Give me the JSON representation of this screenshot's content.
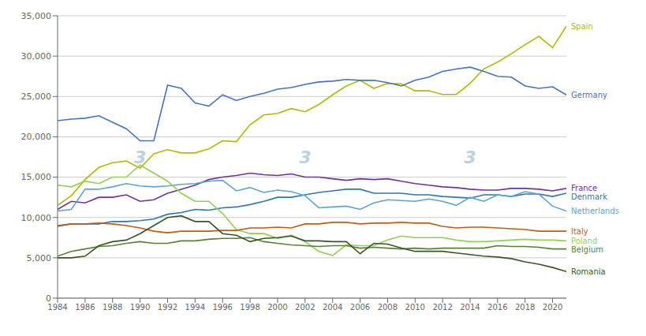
{
  "chart_data": {
    "type": "line",
    "x": [
      1984,
      1985,
      1986,
      1987,
      1988,
      1989,
      1990,
      1991,
      1992,
      1993,
      1994,
      1995,
      1996,
      1997,
      1998,
      1999,
      2000,
      2001,
      2002,
      2003,
      2004,
      2005,
      2006,
      2007,
      2008,
      2009,
      2010,
      2011,
      2012,
      2013,
      2014,
      2015,
      2016,
      2017,
      2018,
      2019,
      2020,
      2021
    ],
    "xlim": [
      1984,
      2021
    ],
    "xticks": [
      1984,
      1986,
      1988,
      1990,
      1992,
      1994,
      1996,
      1998,
      2000,
      2002,
      2004,
      2006,
      2008,
      2010,
      2012,
      2014,
      2016,
      2018,
      2020
    ],
    "ylim": [
      0,
      35000
    ],
    "yticks": [
      0,
      {
        "value": 5000,
        "label": "5,000"
      },
      {
        "value": 10000,
        "label": "10,000"
      },
      {
        "value": 15000,
        "label": "15,000"
      },
      {
        "value": 20000,
        "label": "20,000"
      },
      {
        "value": 25000,
        "label": "25,000"
      },
      {
        "value": 30000,
        "label": "30,000"
      },
      {
        "value": 35000,
        "label": "35,000"
      }
    ],
    "grid": true,
    "series": [
      {
        "name": "Spain",
        "color": "#b5b800",
        "values": [
          11500,
          12700,
          14700,
          16200,
          16800,
          17000,
          16100,
          17900,
          18400,
          18000,
          18000,
          18500,
          19500,
          19400,
          21500,
          22700,
          22900,
          23500,
          23100,
          24000,
          25200,
          26300,
          27000,
          26000,
          26620,
          26560,
          25703,
          25703,
          25250,
          25252,
          26625,
          28420,
          29252,
          30290,
          31420,
          32450,
          31050,
          33700
        ]
      },
      {
        "name": "Germany",
        "color": "#4472c4",
        "values": [
          22000,
          22200,
          22300,
          22600,
          21800,
          21000,
          19500,
          19500,
          26400,
          26000,
          24200,
          23800,
          25200,
          24500,
          25000,
          25400,
          25900,
          26100,
          26500,
          26800,
          26900,
          27100,
          27000,
          27000,
          26710,
          26300,
          27000,
          27400,
          28100,
          28400,
          28630,
          28100,
          27500,
          27400,
          26300,
          26000,
          26200,
          25200
        ]
      },
      {
        "name": "France",
        "color": "#7030a0",
        "values": [
          11000,
          12000,
          11800,
          12500,
          12500,
          12800,
          12000,
          12200,
          13000,
          13500,
          14000,
          14700,
          15000,
          15200,
          15500,
          15300,
          15200,
          15400,
          15000,
          15000,
          14800,
          14600,
          14800,
          14700,
          14800,
          14500,
          14200,
          14000,
          13800,
          13700,
          13500,
          13400,
          13400,
          13600,
          13600,
          13500,
          13300,
          13600
        ]
      },
      {
        "name": "Denmark",
        "color": "#2e75b6",
        "values": [
          9000,
          9200,
          9200,
          9200,
          9500,
          9500,
          9600,
          9800,
          10400,
          10600,
          11000,
          10900,
          11200,
          11300,
          11600,
          12000,
          12500,
          12500,
          12800,
          13100,
          13300,
          13500,
          13500,
          13000,
          13000,
          13000,
          12800,
          12800,
          12600,
          12500,
          12400,
          12800,
          12800,
          12600,
          12900,
          12900,
          12600,
          13000
        ]
      },
      {
        "name": "Netherlands",
        "color": "#5ba3d9",
        "values": [
          10800,
          11000,
          13500,
          13500,
          13800,
          14200,
          13900,
          13800,
          13900,
          14100,
          14200,
          14500,
          14600,
          13300,
          13700,
          13100,
          13400,
          13200,
          12700,
          11200,
          11300,
          11400,
          11000,
          11800,
          12200,
          12100,
          12000,
          12300,
          12000,
          11500,
          12500,
          12000,
          12800,
          12600,
          13200,
          12900,
          11400,
          10800
        ]
      },
      {
        "name": "Poland",
        "color": "#92d050",
        "values": [
          14000,
          13800,
          14500,
          14200,
          15000,
          15000,
          16500,
          15500,
          14500,
          13000,
          12000,
          12000,
          10500,
          8500,
          8000,
          8000,
          7400,
          7800,
          7000,
          5800,
          5300,
          6600,
          6500,
          6500,
          7200,
          7700,
          7500,
          7500,
          7500,
          7200,
          7000,
          7000,
          7100,
          7200,
          7300,
          7200,
          7200,
          7100
        ]
      },
      {
        "name": "Italy",
        "color": "#c55a11",
        "values": [
          8900,
          9200,
          9200,
          9300,
          9200,
          9000,
          8700,
          8300,
          8100,
          8300,
          8300,
          8300,
          8400,
          8400,
          8700,
          8700,
          8800,
          8700,
          9200,
          9200,
          9400,
          9400,
          9200,
          9300,
          9300,
          9400,
          9300,
          9300,
          8900,
          8700,
          8800,
          8800,
          8700,
          8600,
          8500,
          8300,
          8300,
          8300
        ]
      },
      {
        "name": "Belgium",
        "color": "#548235",
        "values": [
          5200,
          5800,
          6100,
          6400,
          6500,
          6800,
          7000,
          6800,
          6800,
          7100,
          7100,
          7300,
          7400,
          7400,
          7500,
          7000,
          6800,
          6600,
          6500,
          6400,
          6500,
          6500,
          6200,
          6300,
          6200,
          6100,
          6200,
          6100,
          6200,
          6200,
          6200,
          6200,
          6500,
          6400,
          6400,
          6300,
          6100,
          6100
        ]
      },
      {
        "name": "Romania",
        "color": "#375623",
        "values": [
          5000,
          5000,
          5200,
          6500,
          7000,
          7200,
          8000,
          9000,
          10000,
          10200,
          9500,
          9500,
          8000,
          7800,
          7000,
          7400,
          7500,
          7700,
          7100,
          7100,
          7000,
          7000,
          5500,
          6800,
          6700,
          6200,
          5800,
          5800,
          5800,
          5600,
          5400,
          5200,
          5100,
          4900,
          4500,
          4200,
          3800,
          3300
        ]
      }
    ],
    "annotations": [
      {
        "text": "3",
        "x": 1990,
        "y": 17500
      },
      {
        "text": "3",
        "x": 2002,
        "y": 17500
      },
      {
        "text": "3",
        "x": 2014,
        "y": 17500
      }
    ]
  }
}
